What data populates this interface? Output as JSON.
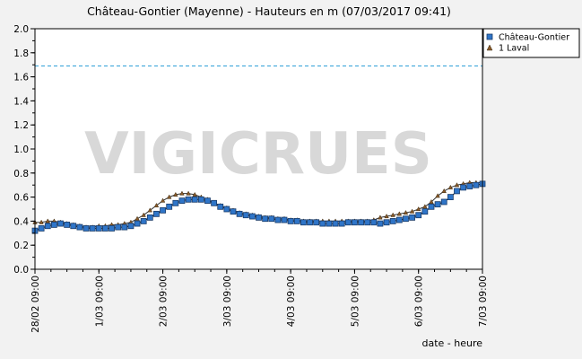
{
  "chart_data": {
    "type": "line",
    "title": "Château-Gontier (Mayenne) - Hauteurs en m (07/03/2017 09:41)",
    "xlabel": "date - heure",
    "ylabel": "",
    "watermark": "VIGICRUES",
    "ylim": [
      0,
      2.0
    ],
    "yticks": [
      "0.0",
      "0.2",
      "0.4",
      "0.6",
      "0.8",
      "1.0",
      "1.2",
      "1.4",
      "1.6",
      "1.8",
      "2.0"
    ],
    "xlim": [
      0,
      7
    ],
    "xticks": [
      {
        "x": 0,
        "label": "28/02  09:00"
      },
      {
        "x": 1,
        "label": "1/03  09:00"
      },
      {
        "x": 2,
        "label": "2/03  09:00"
      },
      {
        "x": 3,
        "label": "3/03  09:00"
      },
      {
        "x": 4,
        "label": "4/03  09:00"
      },
      {
        "x": 5,
        "label": "5/03  09:00"
      },
      {
        "x": 6,
        "label": "6/03  09:00"
      },
      {
        "x": 7,
        "label": "7/03  09:00"
      }
    ],
    "threshold": {
      "y": 1.69,
      "color": "#2f9fd8",
      "style": "dashed"
    },
    "legend_position": "right",
    "series": [
      {
        "name": "Château-Gontier",
        "color": "#2f75c8",
        "marker": "square",
        "points": [
          [
            0.0,
            0.32
          ],
          [
            0.1,
            0.34
          ],
          [
            0.2,
            0.36
          ],
          [
            0.3,
            0.37
          ],
          [
            0.4,
            0.38
          ],
          [
            0.5,
            0.37
          ],
          [
            0.6,
            0.36
          ],
          [
            0.7,
            0.35
          ],
          [
            0.8,
            0.34
          ],
          [
            0.9,
            0.34
          ],
          [
            1.0,
            0.34
          ],
          [
            1.1,
            0.34
          ],
          [
            1.2,
            0.34
          ],
          [
            1.3,
            0.35
          ],
          [
            1.4,
            0.35
          ],
          [
            1.5,
            0.36
          ],
          [
            1.6,
            0.38
          ],
          [
            1.7,
            0.4
          ],
          [
            1.8,
            0.43
          ],
          [
            1.9,
            0.46
          ],
          [
            2.0,
            0.49
          ],
          [
            2.1,
            0.52
          ],
          [
            2.2,
            0.55
          ],
          [
            2.3,
            0.57
          ],
          [
            2.4,
            0.58
          ],
          [
            2.5,
            0.58
          ],
          [
            2.6,
            0.58
          ],
          [
            2.7,
            0.57
          ],
          [
            2.8,
            0.55
          ],
          [
            2.9,
            0.52
          ],
          [
            3.0,
            0.5
          ],
          [
            3.1,
            0.48
          ],
          [
            3.2,
            0.46
          ],
          [
            3.3,
            0.45
          ],
          [
            3.4,
            0.44
          ],
          [
            3.5,
            0.43
          ],
          [
            3.6,
            0.42
          ],
          [
            3.7,
            0.42
          ],
          [
            3.8,
            0.41
          ],
          [
            3.9,
            0.41
          ],
          [
            4.0,
            0.4
          ],
          [
            4.1,
            0.4
          ],
          [
            4.2,
            0.39
          ],
          [
            4.3,
            0.39
          ],
          [
            4.4,
            0.39
          ],
          [
            4.5,
            0.38
          ],
          [
            4.6,
            0.38
          ],
          [
            4.7,
            0.38
          ],
          [
            4.8,
            0.38
          ],
          [
            4.9,
            0.39
          ],
          [
            5.0,
            0.39
          ],
          [
            5.1,
            0.39
          ],
          [
            5.2,
            0.39
          ],
          [
            5.3,
            0.39
          ],
          [
            5.4,
            0.38
          ],
          [
            5.5,
            0.39
          ],
          [
            5.6,
            0.4
          ],
          [
            5.7,
            0.41
          ],
          [
            5.8,
            0.42
          ],
          [
            5.9,
            0.43
          ],
          [
            6.0,
            0.45
          ],
          [
            6.1,
            0.48
          ],
          [
            6.2,
            0.52
          ],
          [
            6.3,
            0.54
          ],
          [
            6.4,
            0.56
          ],
          [
            6.5,
            0.6
          ],
          [
            6.6,
            0.65
          ],
          [
            6.7,
            0.68
          ],
          [
            6.8,
            0.69
          ],
          [
            6.9,
            0.7
          ],
          [
            7.0,
            0.71
          ]
        ]
      },
      {
        "name": "1 Laval",
        "color": "#8a5a2a",
        "marker": "triangle",
        "points": [
          [
            0.0,
            0.39
          ],
          [
            0.1,
            0.39
          ],
          [
            0.2,
            0.4
          ],
          [
            0.3,
            0.4
          ],
          [
            0.4,
            0.39
          ],
          [
            0.5,
            0.38
          ],
          [
            0.6,
            0.37
          ],
          [
            0.7,
            0.36
          ],
          [
            0.8,
            0.35
          ],
          [
            0.9,
            0.35
          ],
          [
            1.0,
            0.36
          ],
          [
            1.1,
            0.36
          ],
          [
            1.2,
            0.37
          ],
          [
            1.3,
            0.37
          ],
          [
            1.4,
            0.38
          ],
          [
            1.5,
            0.39
          ],
          [
            1.6,
            0.42
          ],
          [
            1.7,
            0.45
          ],
          [
            1.8,
            0.49
          ],
          [
            1.9,
            0.53
          ],
          [
            2.0,
            0.57
          ],
          [
            2.1,
            0.6
          ],
          [
            2.2,
            0.62
          ],
          [
            2.3,
            0.63
          ],
          [
            2.4,
            0.63
          ],
          [
            2.5,
            0.62
          ],
          [
            2.6,
            0.6
          ],
          [
            2.7,
            0.58
          ],
          [
            2.8,
            0.55
          ],
          [
            2.9,
            0.53
          ],
          [
            3.0,
            0.51
          ],
          [
            3.1,
            0.49
          ],
          [
            3.2,
            0.47
          ],
          [
            3.3,
            0.46
          ],
          [
            3.4,
            0.45
          ],
          [
            3.5,
            0.44
          ],
          [
            3.6,
            0.43
          ],
          [
            3.7,
            0.43
          ],
          [
            3.8,
            0.42
          ],
          [
            3.9,
            0.42
          ],
          [
            4.0,
            0.41
          ],
          [
            4.1,
            0.41
          ],
          [
            4.2,
            0.4
          ],
          [
            4.3,
            0.4
          ],
          [
            4.4,
            0.4
          ],
          [
            4.5,
            0.4
          ],
          [
            4.6,
            0.4
          ],
          [
            4.7,
            0.4
          ],
          [
            4.8,
            0.4
          ],
          [
            4.9,
            0.4
          ],
          [
            5.0,
            0.4
          ],
          [
            5.1,
            0.4
          ],
          [
            5.2,
            0.4
          ],
          [
            5.3,
            0.41
          ],
          [
            5.4,
            0.43
          ],
          [
            5.5,
            0.44
          ],
          [
            5.6,
            0.45
          ],
          [
            5.7,
            0.46
          ],
          [
            5.8,
            0.47
          ],
          [
            5.9,
            0.48
          ],
          [
            6.0,
            0.5
          ],
          [
            6.1,
            0.52
          ],
          [
            6.2,
            0.56
          ],
          [
            6.3,
            0.61
          ],
          [
            6.4,
            0.65
          ],
          [
            6.5,
            0.68
          ],
          [
            6.6,
            0.7
          ],
          [
            6.7,
            0.71
          ],
          [
            6.8,
            0.72
          ],
          [
            6.9,
            0.72
          ],
          [
            7.0,
            0.72
          ]
        ]
      }
    ]
  }
}
